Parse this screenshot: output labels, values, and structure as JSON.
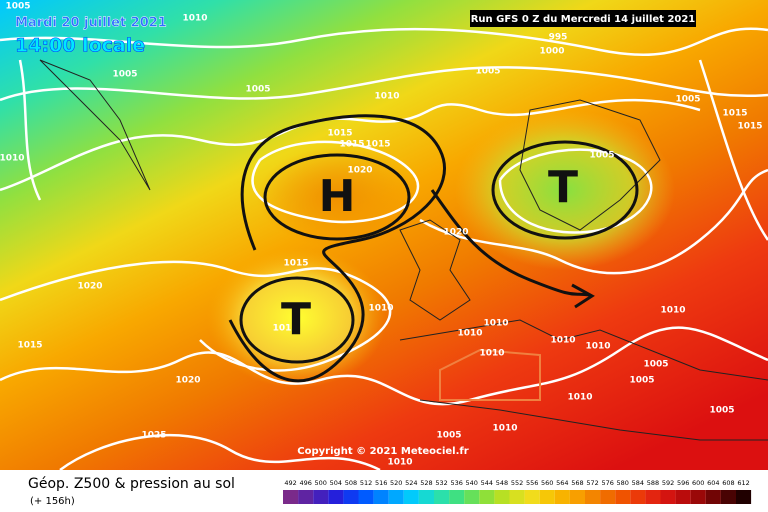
{
  "header": {
    "date": "Mardi 20 juillet 2021",
    "time": "14:00 locale",
    "run": "Run GFS 0 Z du Mercredi 14 juillet 2021"
  },
  "copyright": "Copyright © 2021 Meteociel.fr",
  "legend": {
    "title": "Géop. Z500 & pression au sol",
    "lead": "(+ 156h)",
    "scale": [
      492,
      496,
      500,
      504,
      508,
      512,
      516,
      520,
      524,
      528,
      532,
      536,
      540,
      544,
      548,
      552,
      556,
      560,
      564,
      568,
      572,
      576,
      580,
      584,
      588,
      592,
      596,
      600,
      604,
      608,
      612
    ]
  },
  "isobar_labels": [
    "1005",
    "1010",
    "995",
    "1000",
    "1005",
    "1005",
    "1005",
    "1010",
    "1005",
    "1015",
    "1015",
    "1010",
    "1015",
    "1015",
    "1015",
    "1020",
    "1005",
    "1020",
    "1015",
    "1020",
    "1010",
    "1010",
    "1010",
    "1015",
    "1010",
    "1010",
    "1010",
    "1010",
    "1005",
    "1020",
    "1005",
    "1010",
    "1005",
    "1025",
    "1005",
    "1010",
    "1010",
    "101"
  ],
  "systems": [
    "H",
    "T",
    "T"
  ]
}
